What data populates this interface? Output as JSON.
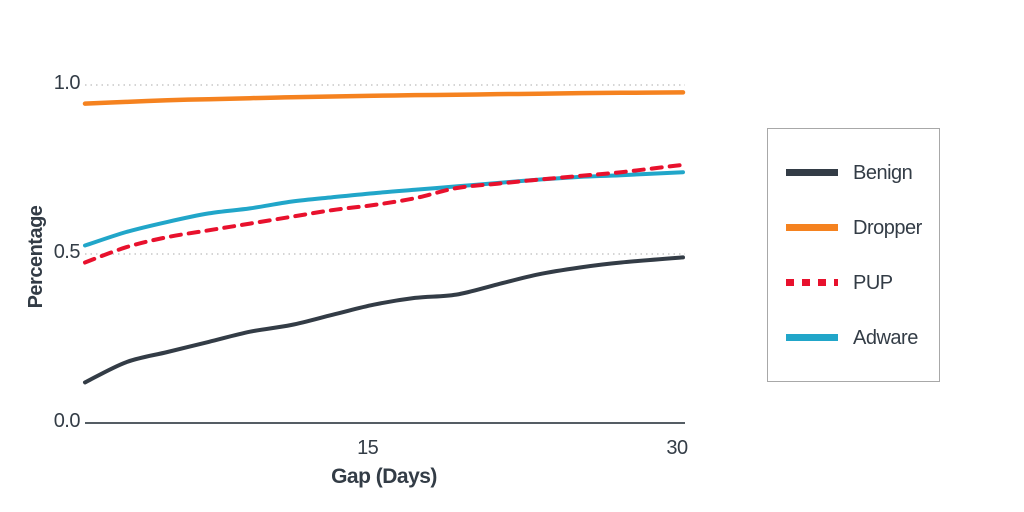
{
  "chart_data": {
    "type": "line",
    "title": "",
    "xlabel": "Gap (Days)",
    "ylabel": "Percentage",
    "x_range": [
      1,
      30
    ],
    "ylim": [
      0,
      1
    ],
    "grid": "dotted horizontal gridlines at 0.5 and 1.0",
    "legend_position": "right-outside-boxed",
    "x": [
      1,
      3,
      5,
      7,
      9,
      11,
      13,
      15,
      17,
      19,
      21,
      23,
      25,
      27,
      30
    ],
    "xticks": [
      {
        "value": 15,
        "label": "15"
      },
      {
        "value": 30,
        "label": "30"
      }
    ],
    "yticks": [
      {
        "value": 1.0,
        "label": "1.0",
        "gridline": true
      },
      {
        "value": 0.5,
        "label": "0.5",
        "gridline": true
      },
      {
        "value": 0.0,
        "label": "0.0",
        "gridline": false
      }
    ],
    "series": [
      {
        "name": "Benign",
        "color": "#333c46",
        "style": "solid",
        "width": 4,
        "z": 1,
        "values": [
          0.12,
          0.18,
          0.21,
          0.24,
          0.27,
          0.29,
          0.32,
          0.35,
          0.37,
          0.38,
          0.41,
          0.44,
          0.46,
          0.475,
          0.49
        ]
      },
      {
        "name": "Dropper",
        "color": "#f5821f",
        "style": "solid",
        "width": 4.5,
        "z": 2,
        "values": [
          0.945,
          0.95,
          0.955,
          0.958,
          0.961,
          0.964,
          0.966,
          0.968,
          0.97,
          0.971,
          0.973,
          0.974,
          0.976,
          0.977,
          0.978
        ]
      },
      {
        "name": "PUP",
        "color": "#e8112d",
        "style": "dashed",
        "width": 4,
        "z": 4,
        "values": [
          0.475,
          0.52,
          0.55,
          0.57,
          0.59,
          0.61,
          0.63,
          0.645,
          0.665,
          0.695,
          0.708,
          0.72,
          0.731,
          0.742,
          0.764
        ]
      },
      {
        "name": "Adware",
        "color": "#21a6c9",
        "style": "solid",
        "width": 4,
        "z": 3,
        "values": [
          0.525,
          0.565,
          0.595,
          0.62,
          0.635,
          0.655,
          0.668,
          0.68,
          0.69,
          0.7,
          0.71,
          0.72,
          0.728,
          0.733,
          0.742
        ]
      }
    ]
  }
}
